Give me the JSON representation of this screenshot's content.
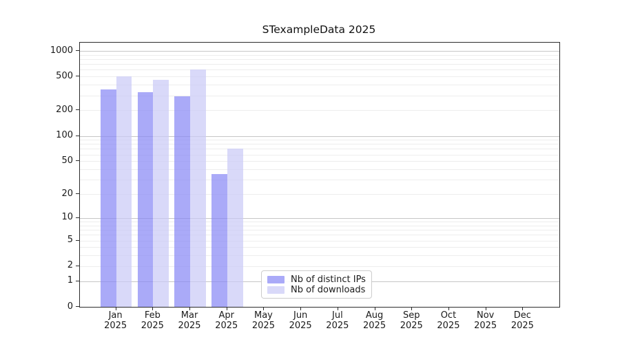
{
  "chart_data": {
    "type": "bar",
    "title": "STexampleData 2025",
    "categories": [
      "Jan",
      "Feb",
      "Mar",
      "Apr",
      "May",
      "Jun",
      "Jul",
      "Aug",
      "Sep",
      "Oct",
      "Nov",
      "Dec"
    ],
    "category_year": "2025",
    "series": [
      {
        "name": "Nb of distinct IPs",
        "color": "rgba(134,134,245,0.7)",
        "values": [
          350,
          330,
          295,
          35,
          0,
          0,
          0,
          0,
          0,
          0,
          0,
          0
        ]
      },
      {
        "name": "Nb of downloads",
        "color": "rgba(201,201,246,0.7)",
        "values": [
          500,
          460,
          610,
          70,
          0,
          0,
          0,
          0,
          0,
          0,
          0,
          0
        ]
      }
    ],
    "yscale": "log1p",
    "y_ticks": [
      0,
      1,
      2,
      5,
      10,
      20,
      50,
      100,
      200,
      500,
      1000
    ],
    "y_major_gridlines": [
      1,
      10,
      100,
      1000
    ],
    "ylim": [
      0,
      1250
    ],
    "xlabel": "",
    "ylabel": "",
    "grid": "horizontal",
    "legend_position": "lower-center",
    "colors": {
      "axis": "#2b2b2b",
      "grid_major": "#c6c6c6",
      "grid_minor": "#ededed",
      "background": "#ffffff"
    }
  }
}
